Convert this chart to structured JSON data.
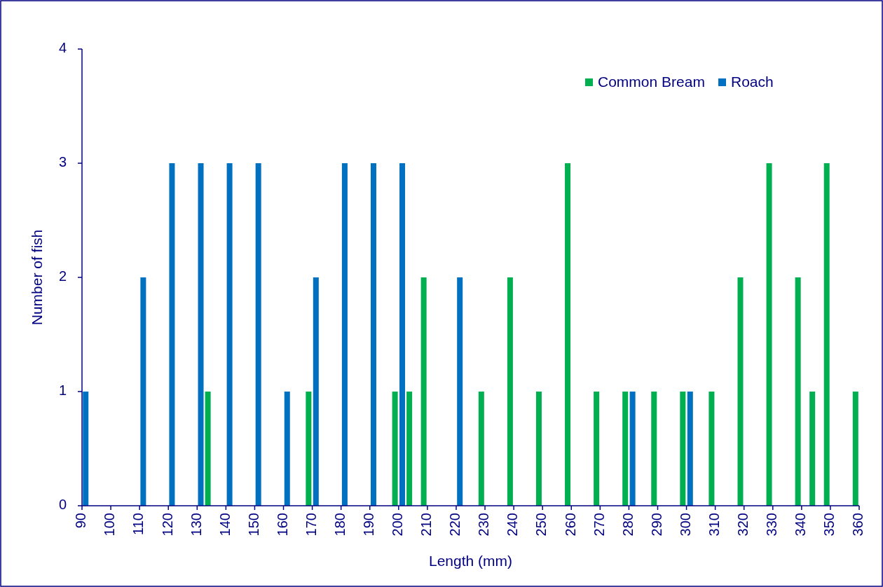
{
  "chart_data": {
    "type": "bar",
    "xlabel": "Length (mm)",
    "ylabel": "Number of fish",
    "xlim": [
      90,
      360
    ],
    "xticks": [
      90,
      100,
      110,
      120,
      130,
      140,
      150,
      160,
      170,
      180,
      190,
      200,
      210,
      220,
      230,
      240,
      250,
      260,
      270,
      280,
      290,
      300,
      310,
      320,
      330,
      340,
      350,
      360
    ],
    "ylim": [
      0,
      4
    ],
    "yticks": [
      0,
      1,
      2,
      3,
      4
    ],
    "grid": false,
    "legend": "top right",
    "series": [
      {
        "name": "Common Bream",
        "color": "#00b050",
        "x": [
          135,
          170,
          200,
          205,
          210,
          230,
          240,
          250,
          260,
          270,
          280,
          290,
          300,
          310,
          320,
          330,
          340,
          345,
          350,
          360
        ],
        "values": [
          1,
          1,
          1,
          1,
          2,
          1,
          2,
          1,
          3,
          1,
          1,
          1,
          1,
          1,
          2,
          3,
          2,
          1,
          3,
          1
        ]
      },
      {
        "name": "Roach",
        "color": "#0070c0",
        "x": [
          90,
          110,
          120,
          130,
          140,
          150,
          160,
          170,
          180,
          190,
          200,
          220,
          280,
          300
        ],
        "values": [
          1,
          2,
          3,
          3,
          3,
          3,
          1,
          2,
          3,
          3,
          3,
          2,
          1,
          1
        ]
      }
    ]
  }
}
